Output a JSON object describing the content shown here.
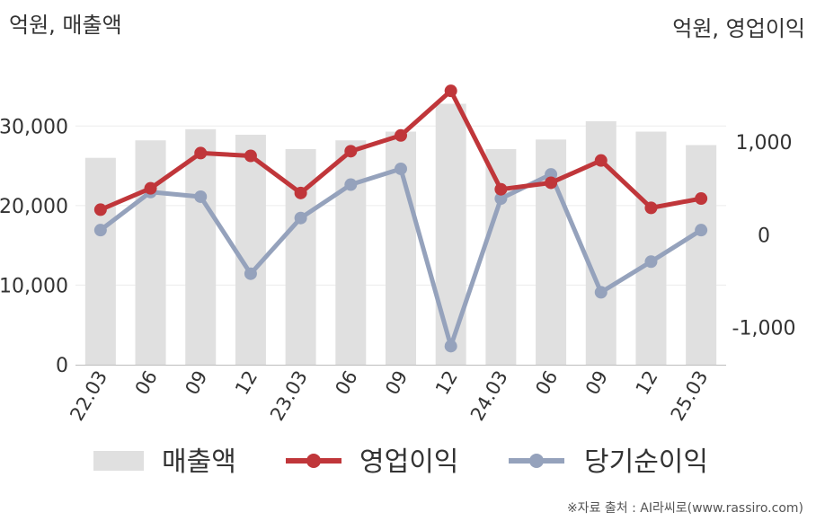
{
  "chart_data": {
    "type": "bar+line",
    "left_axis_label": "억원, 매출액",
    "right_axis_label": "억원, 영업이익",
    "categories": [
      "22.03",
      "06",
      "09",
      "12",
      "23.03",
      "06",
      "09",
      "12",
      "24.03",
      "06",
      "09",
      "12",
      "25.03"
    ],
    "left_ylim": [
      0,
      35000
    ],
    "left_ticks": [
      0,
      10000,
      20000,
      30000
    ],
    "left_tick_labels": [
      "0",
      "10,000",
      "20,000",
      "30,000"
    ],
    "right_ylim": [
      -1400,
      1600
    ],
    "right_ticks": [
      -1000,
      0,
      1000
    ],
    "right_tick_labels": [
      "-1,000",
      "0",
      "1,000"
    ],
    "grid": true,
    "legend_position": "bottom",
    "series": [
      {
        "name": "매출액",
        "kind": "bar",
        "axis": "left",
        "color": "#e0e0e0",
        "values": [
          26000,
          28200,
          29600,
          28900,
          27100,
          28200,
          29300,
          32800,
          27100,
          28300,
          30600,
          29300,
          27600
        ]
      },
      {
        "name": "영업이익",
        "kind": "line",
        "axis": "right",
        "color": "#c0363a",
        "values": [
          270,
          500,
          880,
          850,
          450,
          900,
          1070,
          1550,
          490,
          560,
          800,
          290,
          390
        ]
      },
      {
        "name": "당기순이익",
        "kind": "line",
        "axis": "right",
        "color": "#95a2bc",
        "values": [
          50,
          460,
          410,
          -420,
          180,
          540,
          710,
          -1200,
          390,
          650,
          -620,
          -290,
          50
        ]
      }
    ]
  },
  "source_note": "※자료 출처 : AI라씨로(www.rassiro.com)"
}
